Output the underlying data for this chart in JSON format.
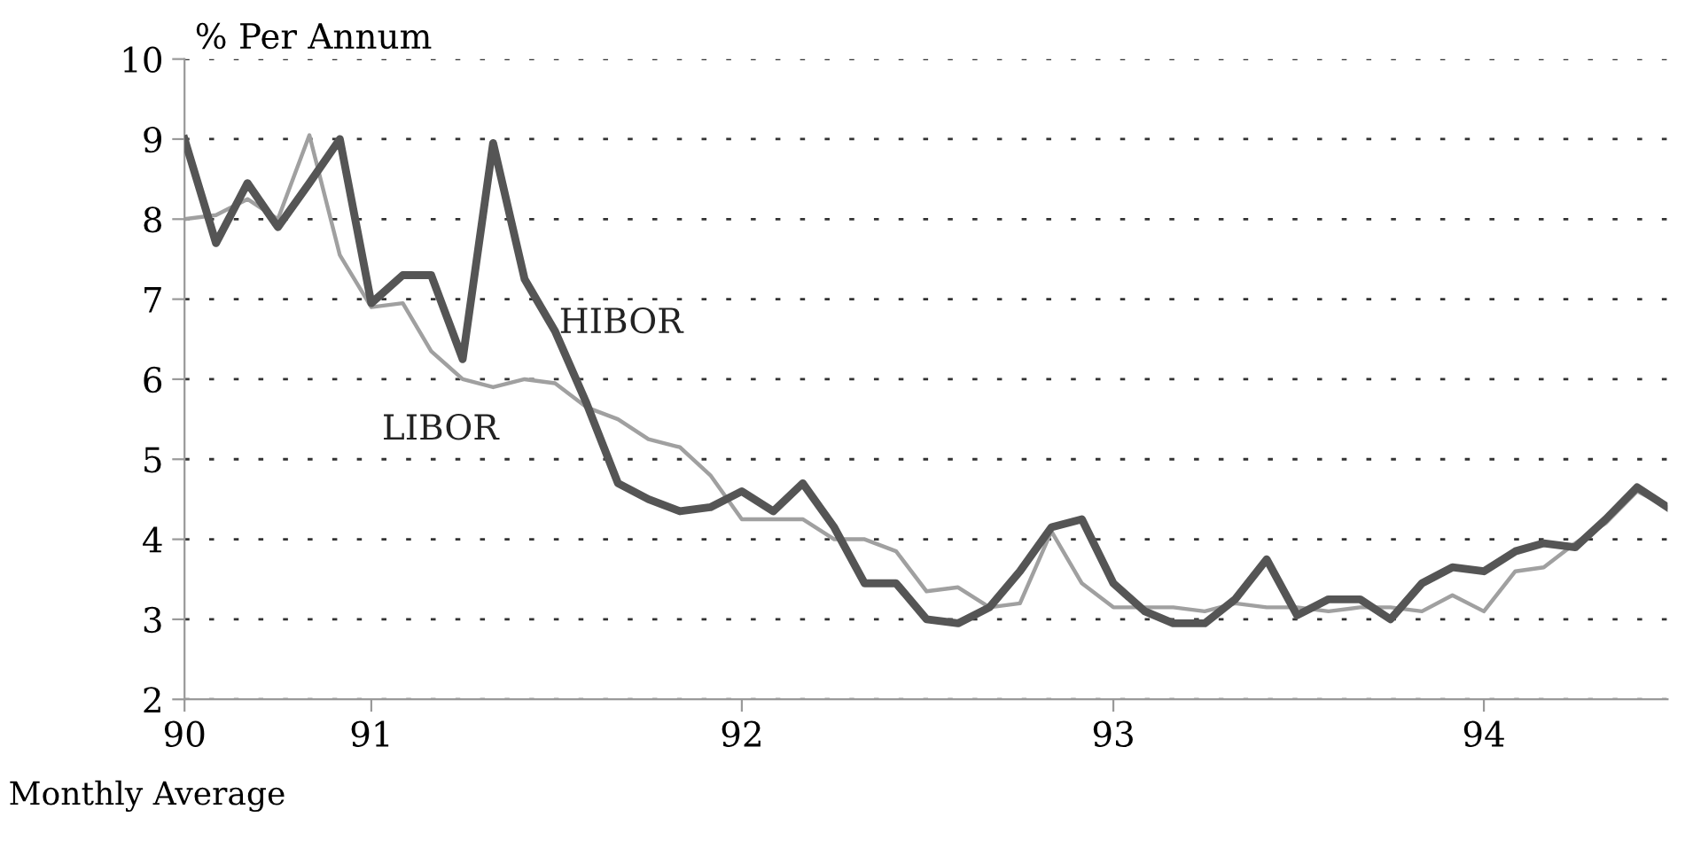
{
  "chart_data": {
    "type": "line",
    "ylabel": "% Per Annum",
    "annotations": [
      "Monthly Average"
    ],
    "x": [
      "1990-07",
      "1990-08",
      "1990-09",
      "1990-10",
      "1990-11",
      "1990-12",
      "1991-01",
      "1991-02",
      "1991-03",
      "1991-04",
      "1991-05",
      "1991-06",
      "1991-07",
      "1991-08",
      "1991-09",
      "1991-10",
      "1991-11",
      "1991-12",
      "1992-01",
      "1992-02",
      "1992-03",
      "1992-04",
      "1992-05",
      "1992-06",
      "1992-07",
      "1992-08",
      "1992-09",
      "1992-10",
      "1992-11",
      "1992-12",
      "1993-01",
      "1993-02",
      "1993-03",
      "1993-04",
      "1993-05",
      "1993-06",
      "1993-07",
      "1993-08",
      "1993-09",
      "1993-10",
      "1993-11",
      "1993-12",
      "1994-01",
      "1994-02",
      "1994-03",
      "1994-04",
      "1994-05",
      "1994-06",
      "1994-07"
    ],
    "series": [
      {
        "name": "HIBOR",
        "color": "#555555",
        "values": [
          9.0,
          7.7,
          8.45,
          7.9,
          8.45,
          9.0,
          6.95,
          7.3,
          7.3,
          6.25,
          8.95,
          7.25,
          6.6,
          5.7,
          4.7,
          4.5,
          4.35,
          4.4,
          4.6,
          4.35,
          4.7,
          4.15,
          3.45,
          3.45,
          3.0,
          2.95,
          3.15,
          3.6,
          4.15,
          4.25,
          3.45,
          3.1,
          2.95,
          2.95,
          3.25,
          3.75,
          3.05,
          3.25,
          3.25,
          3.0,
          3.45,
          3.65,
          3.6,
          3.85,
          3.95,
          3.9,
          4.25,
          4.65,
          4.4
        ]
      },
      {
        "name": "LIBOR",
        "color": "#a0a0a0",
        "values": [
          8.0,
          8.05,
          8.25,
          8.0,
          9.05,
          7.55,
          6.9,
          6.95,
          6.35,
          6.0,
          5.9,
          6.0,
          5.95,
          5.65,
          5.5,
          5.25,
          5.15,
          4.8,
          4.25,
          4.25,
          4.25,
          4.0,
          4.0,
          3.85,
          3.35,
          3.4,
          3.15,
          3.2,
          4.1,
          3.45,
          3.15,
          3.15,
          3.15,
          3.1,
          3.2,
          3.15,
          3.15,
          3.1,
          3.15,
          3.15,
          3.1,
          3.3,
          3.1,
          3.6,
          3.65,
          3.95,
          4.2,
          4.6,
          4.4
        ]
      }
    ],
    "xlim": [
      "1990-07",
      "1994-07"
    ],
    "xticks": [
      {
        "value": "1990-07",
        "label": "90"
      },
      {
        "value": "1991-01",
        "label": "91"
      },
      {
        "value": "1992-01",
        "label": "92"
      },
      {
        "value": "1993-01",
        "label": "93"
      },
      {
        "value": "1994-01",
        "label": "94"
      }
    ],
    "ylim": [
      2,
      10
    ],
    "yticks": [
      2,
      3,
      4,
      5,
      6,
      7,
      8,
      9,
      10
    ],
    "grid": "y",
    "legend": false
  }
}
